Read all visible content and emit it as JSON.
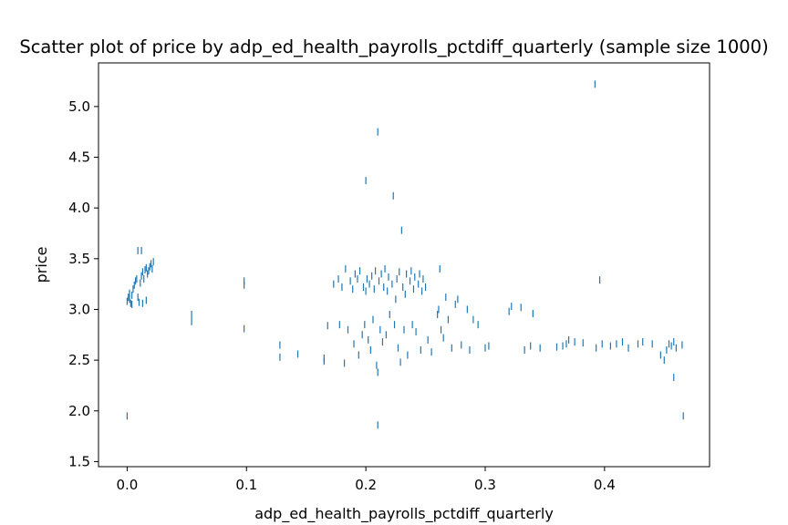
{
  "chart_data": {
    "type": "scatter",
    "title": "Scatter plot of price by adp_ed_health_payrolls_pctdiff_quarterly (sample size 1000)",
    "xlabel": "adp_ed_health_payrolls_pctdiff_quarterly",
    "ylabel": "price",
    "xlim": [
      -0.024,
      0.488
    ],
    "ylim": [
      1.45,
      5.43
    ],
    "xticks": [
      0.0,
      0.1,
      0.2,
      0.3,
      0.4
    ],
    "xtick_labels": [
      "0.0",
      "0.1",
      "0.2",
      "0.3",
      "0.4"
    ],
    "yticks": [
      1.5,
      2.0,
      2.5,
      3.0,
      3.5,
      4.0,
      4.5,
      5.0
    ],
    "ytick_labels": [
      "1.5",
      "2.0",
      "2.5",
      "3.0",
      "3.5",
      "4.0",
      "4.5",
      "5.0"
    ],
    "grid": false,
    "marker": "|",
    "color": "#1f77b4",
    "points": [
      [
        0.0,
        3.08
      ],
      [
        0.001,
        3.12
      ],
      [
        0.002,
        3.1
      ],
      [
        0.003,
        3.06
      ],
      [
        0.004,
        3.14
      ],
      [
        0.002,
        3.16
      ],
      [
        0.005,
        3.2
      ],
      [
        0.006,
        3.24
      ],
      [
        0.007,
        3.28
      ],
      [
        0.008,
        3.3
      ],
      [
        0.009,
        3.12
      ],
      [
        0.01,
        3.07
      ],
      [
        0.011,
        3.26
      ],
      [
        0.012,
        3.33
      ],
      [
        0.013,
        3.37
      ],
      [
        0.014,
        3.3
      ],
      [
        0.015,
        3.39
      ],
      [
        0.016,
        3.41
      ],
      [
        0.017,
        3.35
      ],
      [
        0.018,
        3.38
      ],
      [
        0.019,
        3.42
      ],
      [
        0.02,
        3.45
      ],
      [
        0.021,
        3.4
      ],
      [
        0.022,
        3.47
      ],
      [
        0.016,
        3.09
      ],
      [
        0.013,
        3.06
      ],
      [
        0.009,
        3.58
      ],
      [
        0.012,
        3.58
      ],
      [
        0.0,
        1.95
      ],
      [
        0.004,
        3.05
      ],
      [
        0.054,
        2.88
      ],
      [
        0.054,
        2.95
      ],
      [
        0.098,
        3.24
      ],
      [
        0.098,
        3.28
      ],
      [
        0.098,
        2.81
      ],
      [
        0.128,
        2.65
      ],
      [
        0.128,
        2.53
      ],
      [
        0.143,
        2.56
      ],
      [
        0.165,
        2.52
      ],
      [
        0.165,
        2.49
      ],
      [
        0.168,
        2.84
      ],
      [
        0.173,
        3.25
      ],
      [
        0.177,
        3.3
      ],
      [
        0.178,
        2.85
      ],
      [
        0.18,
        3.22
      ],
      [
        0.182,
        2.47
      ],
      [
        0.183,
        3.4
      ],
      [
        0.185,
        2.8
      ],
      [
        0.187,
        3.28
      ],
      [
        0.189,
        3.2
      ],
      [
        0.19,
        2.66
      ],
      [
        0.191,
        3.35
      ],
      [
        0.193,
        3.3
      ],
      [
        0.194,
        2.55
      ],
      [
        0.195,
        3.38
      ],
      [
        0.197,
        2.75
      ],
      [
        0.198,
        3.22
      ],
      [
        0.199,
        2.85
      ],
      [
        0.2,
        3.18
      ],
      [
        0.2,
        4.27
      ],
      [
        0.201,
        3.3
      ],
      [
        0.202,
        2.7
      ],
      [
        0.203,
        3.25
      ],
      [
        0.204,
        2.6
      ],
      [
        0.205,
        3.33
      ],
      [
        0.206,
        2.9
      ],
      [
        0.207,
        3.2
      ],
      [
        0.208,
        3.38
      ],
      [
        0.209,
        2.45
      ],
      [
        0.21,
        2.38
      ],
      [
        0.21,
        4.75
      ],
      [
        0.21,
        1.86
      ],
      [
        0.211,
        3.28
      ],
      [
        0.212,
        2.8
      ],
      [
        0.213,
        3.35
      ],
      [
        0.214,
        2.68
      ],
      [
        0.215,
        3.22
      ],
      [
        0.216,
        3.4
      ],
      [
        0.217,
        2.75
      ],
      [
        0.218,
        3.18
      ],
      [
        0.219,
        3.32
      ],
      [
        0.22,
        2.95
      ],
      [
        0.222,
        3.25
      ],
      [
        0.223,
        4.12
      ],
      [
        0.224,
        2.85
      ],
      [
        0.225,
        3.1
      ],
      [
        0.226,
        3.3
      ],
      [
        0.227,
        2.62
      ],
      [
        0.228,
        3.37
      ],
      [
        0.229,
        2.48
      ],
      [
        0.23,
        3.78
      ],
      [
        0.231,
        3.22
      ],
      [
        0.232,
        2.8
      ],
      [
        0.233,
        3.15
      ],
      [
        0.234,
        3.35
      ],
      [
        0.235,
        2.55
      ],
      [
        0.237,
        3.28
      ],
      [
        0.238,
        3.38
      ],
      [
        0.239,
        2.85
      ],
      [
        0.24,
        3.2
      ],
      [
        0.241,
        3.32
      ],
      [
        0.242,
        2.78
      ],
      [
        0.244,
        3.25
      ],
      [
        0.245,
        3.35
      ],
      [
        0.246,
        2.6
      ],
      [
        0.247,
        3.18
      ],
      [
        0.248,
        3.3
      ],
      [
        0.25,
        3.22
      ],
      [
        0.252,
        2.7
      ],
      [
        0.255,
        2.58
      ],
      [
        0.26,
        2.95
      ],
      [
        0.261,
        3.0
      ],
      [
        0.262,
        3.4
      ],
      [
        0.263,
        2.8
      ],
      [
        0.265,
        2.72
      ],
      [
        0.267,
        3.12
      ],
      [
        0.269,
        2.9
      ],
      [
        0.272,
        2.62
      ],
      [
        0.275,
        3.05
      ],
      [
        0.277,
        3.1
      ],
      [
        0.28,
        2.65
      ],
      [
        0.285,
        3.0
      ],
      [
        0.287,
        2.6
      ],
      [
        0.29,
        2.9
      ],
      [
        0.294,
        2.85
      ],
      [
        0.3,
        2.62
      ],
      [
        0.303,
        2.64
      ],
      [
        0.32,
        2.98
      ],
      [
        0.322,
        3.03
      ],
      [
        0.33,
        3.02
      ],
      [
        0.333,
        2.6
      ],
      [
        0.338,
        2.64
      ],
      [
        0.34,
        2.96
      ],
      [
        0.346,
        2.62
      ],
      [
        0.36,
        2.63
      ],
      [
        0.365,
        2.64
      ],
      [
        0.368,
        2.66
      ],
      [
        0.37,
        2.7
      ],
      [
        0.375,
        2.68
      ],
      [
        0.382,
        2.67
      ],
      [
        0.392,
        5.22
      ],
      [
        0.393,
        2.62
      ],
      [
        0.396,
        3.29
      ],
      [
        0.398,
        2.66
      ],
      [
        0.405,
        2.64
      ],
      [
        0.41,
        2.66
      ],
      [
        0.415,
        2.68
      ],
      [
        0.42,
        2.62
      ],
      [
        0.428,
        2.66
      ],
      [
        0.432,
        2.68
      ],
      [
        0.44,
        2.66
      ],
      [
        0.447,
        2.55
      ],
      [
        0.45,
        2.5
      ],
      [
        0.452,
        2.6
      ],
      [
        0.454,
        2.66
      ],
      [
        0.456,
        2.64
      ],
      [
        0.458,
        2.68
      ],
      [
        0.46,
        2.62
      ],
      [
        0.458,
        2.33
      ],
      [
        0.465,
        2.65
      ],
      [
        0.466,
        1.95
      ]
    ]
  }
}
